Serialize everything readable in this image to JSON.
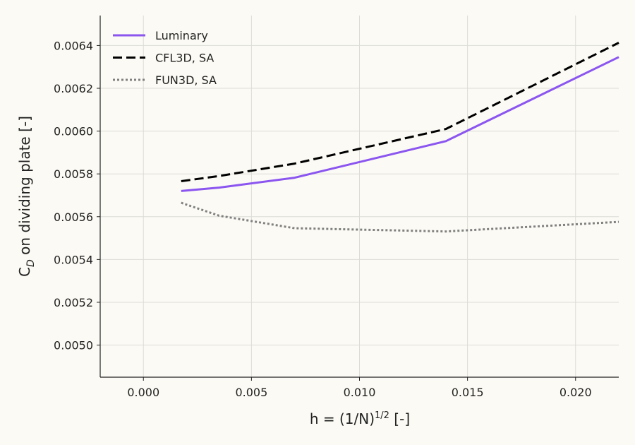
{
  "chart_data": {
    "type": "line",
    "xlabel": "h = (1/N)",
    "xlabel_superscript": "1/2",
    "xlabel_suffix": " [-]",
    "ylabel": "C",
    "ylabel_subscript": "D",
    "ylabel_suffix": " on dividing plate [-]",
    "xlim": [
      -0.002,
      0.022
    ],
    "ylim": [
      0.00485,
      0.00654
    ],
    "xticks": [
      0.0,
      0.005,
      0.01,
      0.015,
      0.02
    ],
    "xtick_labels": [
      "0.000",
      "0.005",
      "0.010",
      "0.015",
      "0.020"
    ],
    "yticks": [
      0.005,
      0.0052,
      0.0054,
      0.0056,
      0.0058,
      0.006,
      0.0062,
      0.0064
    ],
    "ytick_labels": [
      "0.0050",
      "0.0052",
      "0.0054",
      "0.0056",
      "0.0058",
      "0.0060",
      "0.0062",
      "0.0064"
    ],
    "grid": true,
    "legend_position": "top-left",
    "series": [
      {
        "name": "Luminary",
        "color": "#8b55f0",
        "style": "solid",
        "x": [
          0.00175,
          0.0035,
          0.007,
          0.014,
          0.022
        ],
        "y": [
          0.00572,
          0.005736,
          0.005782,
          0.005953,
          0.006346
        ]
      },
      {
        "name": "CFL3D, SA",
        "color": "#000000",
        "style": "dashed",
        "x": [
          0.00175,
          0.0035,
          0.007,
          0.014,
          0.022
        ],
        "y": [
          0.005766,
          0.00579,
          0.005848,
          0.00601,
          0.006413
        ]
      },
      {
        "name": "FUN3D, SA",
        "color": "#808080",
        "style": "dotted",
        "x": [
          0.00175,
          0.0035,
          0.007,
          0.014,
          0.022
        ],
        "y": [
          0.005665,
          0.005605,
          0.005546,
          0.005531,
          0.005576
        ]
      }
    ]
  }
}
